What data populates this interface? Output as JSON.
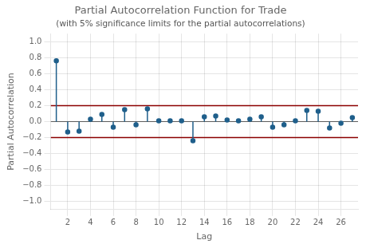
{
  "chart_data": {
    "type": "stem",
    "title": "Partial Autocorrelation Function for Trade",
    "subtitle": "(with 5% significance limits for the partial autocorrelations)",
    "x_label": "Lag",
    "y_label": "Partial Autocorrelation",
    "x": [
      1,
      2,
      3,
      4,
      5,
      6,
      7,
      8,
      9,
      10,
      11,
      12,
      13,
      14,
      15,
      16,
      17,
      18,
      19,
      20,
      21,
      22,
      23,
      24,
      25,
      26,
      27
    ],
    "values": [
      0.76,
      -0.13,
      -0.12,
      0.03,
      0.09,
      -0.07,
      0.15,
      -0.04,
      0.16,
      0.01,
      0.01,
      0.01,
      -0.24,
      0.06,
      0.07,
      0.02,
      0.01,
      0.03,
      0.06,
      -0.07,
      -0.04,
      0.01,
      0.14,
      0.13,
      -0.08,
      -0.02,
      0.05
    ],
    "color": "#1f5f8b",
    "marker": "circle",
    "reference_lines": [
      {
        "value": 0.2,
        "color": "#8b0000"
      },
      {
        "value": -0.2,
        "color": "#8b0000"
      },
      {
        "value": 0,
        "color": "#000000"
      }
    ],
    "xlim": [
      0.5,
      27.5
    ],
    "xticks": [
      2,
      4,
      6,
      8,
      10,
      12,
      14,
      16,
      18,
      20,
      22,
      24,
      26
    ],
    "ylim": [
      -1.1,
      1.1
    ],
    "yticks": [
      {
        "value": -1.0,
        "label": "−1.0"
      },
      {
        "value": -0.8,
        "label": "−0.8"
      },
      {
        "value": -0.6,
        "label": "−0.6"
      },
      {
        "value": -0.4,
        "label": "−0.4"
      },
      {
        "value": -0.2,
        "label": "−0.2"
      },
      {
        "value": 0.0,
        "label": "0.0"
      },
      {
        "value": 0.2,
        "label": "0.2"
      },
      {
        "value": 0.4,
        "label": "0.4"
      },
      {
        "value": 0.6,
        "label": "0.6"
      },
      {
        "value": 0.8,
        "label": "0.8"
      },
      {
        "value": 1.0,
        "label": "1.0"
      }
    ],
    "grid": true
  }
}
